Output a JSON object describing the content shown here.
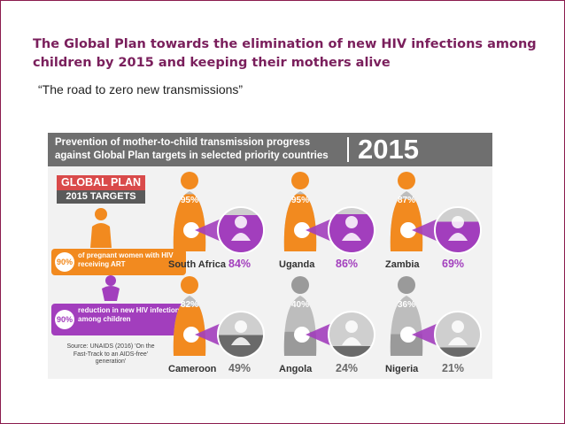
{
  "slide": {
    "title": "The Global Plan towards the elimination of new HIV infections among children by 2015 and keeping their mothers alive",
    "subtitle": "“The road to zero new transmissions”"
  },
  "infographic": {
    "header": "Prevention of mother-to-child transmission progress against Global Plan targets in selected priority countries",
    "year": "2015",
    "global_plan": "GLOBAL PLAN",
    "targets": "2015 TARGETS",
    "legend": [
      {
        "pct": "90%",
        "text": "of pregnant women with HIV receiving ART",
        "color": "#f28a1f"
      },
      {
        "pct": "90%",
        "text": "reduction in new HIV infections among children",
        "color": "#a23ebd"
      }
    ],
    "source": "Source: UNAIDS (2016) 'On the Fast-Track to an AIDS-free' generation'",
    "countries": [
      {
        "name": "South Africa",
        "mother_pct": "95%",
        "child_pct": "84%",
        "mother_level": 0.95,
        "child_level": 0.84
      },
      {
        "name": "Uganda",
        "mother_pct": "95%",
        "child_pct": "86%",
        "mother_level": 0.95,
        "child_level": 0.86
      },
      {
        "name": "Zambia",
        "mother_pct": "87%",
        "child_pct": "69%",
        "mother_level": 0.87,
        "child_level": 0.69
      },
      {
        "name": "Cameroon",
        "mother_pct": "82%",
        "child_pct": "49%",
        "mother_level": 0.82,
        "child_level": 0.49
      },
      {
        "name": "Angola",
        "mother_pct": "40%",
        "child_pct": "24%",
        "mother_level": 0.4,
        "child_level": 0.24
      },
      {
        "name": "Nigeria",
        "mother_pct": "36%",
        "child_pct": "21%",
        "mother_level": 0.36,
        "child_level": 0.21
      }
    ],
    "colors": {
      "orange": "#f28a1f",
      "purple": "#a23ebd",
      "grey": "#9a9a9a",
      "red": "#d94a4a"
    }
  }
}
